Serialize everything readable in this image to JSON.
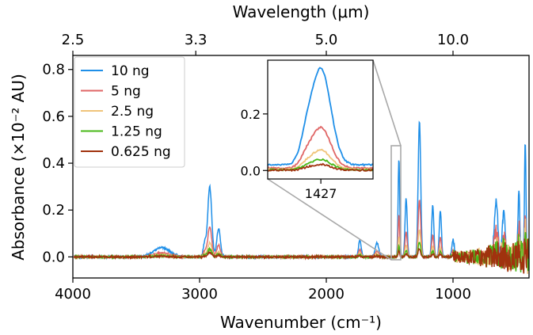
{
  "chart_data": {
    "type": "line",
    "xlabel": "Wavenumber (cm⁻¹)",
    "ylabel": "Absorbance (×10⁻² AU)",
    "top_xlabel": "Wavelength (μm)",
    "xlim": [
      4000,
      400
    ],
    "ylim": [
      -0.09,
      0.86
    ],
    "x_ticks": [
      4000,
      3000,
      2000,
      1000
    ],
    "x_tick_labels": [
      "4000",
      "3000",
      "2000",
      "1000"
    ],
    "y_ticks": [
      0.0,
      0.2,
      0.4,
      0.6,
      0.8
    ],
    "y_tick_labels": [
      "0.0",
      "0.2",
      "0.4",
      "0.6",
      "0.8"
    ],
    "top_ticks_wavenumber": [
      4000,
      3030,
      2000,
      1000
    ],
    "top_tick_labels": [
      "2.5",
      "3.3",
      "5.0",
      "10.0"
    ],
    "legend_position": "top-left",
    "series": [
      {
        "name": "10 ng",
        "color": "#1f8fe8",
        "scale": 1.0
      },
      {
        "name": "5 ng",
        "color": "#e06666",
        "scale": 0.42
      },
      {
        "name": "2.5 ng",
        "color": "#f0c47a",
        "scale": 0.2
      },
      {
        "name": "1.25 ng",
        "color": "#48b818",
        "scale": 0.11
      },
      {
        "name": "0.625 ng",
        "color": "#a0320e",
        "scale": 0.06
      }
    ],
    "peaks": [
      {
        "center": 3300,
        "width": 90,
        "height": 0.04
      },
      {
        "center": 2920,
        "width": 22,
        "height": 0.3
      },
      {
        "center": 2850,
        "width": 20,
        "height": 0.12
      },
      {
        "center": 2960,
        "width": 15,
        "height": 0.06
      },
      {
        "center": 1735,
        "width": 15,
        "height": 0.07
      },
      {
        "center": 1600,
        "width": 20,
        "height": 0.06
      },
      {
        "center": 1427,
        "width": 9,
        "height": 0.42
      },
      {
        "center": 1370,
        "width": 12,
        "height": 0.25
      },
      {
        "center": 1265,
        "width": 14,
        "height": 0.58
      },
      {
        "center": 1160,
        "width": 12,
        "height": 0.22
      },
      {
        "center": 1100,
        "width": 12,
        "height": 0.2
      },
      {
        "center": 1000,
        "width": 14,
        "height": 0.07
      },
      {
        "center": 660,
        "width": 20,
        "height": 0.24
      },
      {
        "center": 600,
        "width": 15,
        "height": 0.2
      },
      {
        "center": 480,
        "width": 10,
        "height": 0.28
      },
      {
        "center": 430,
        "width": 8,
        "height": 0.5
      }
    ],
    "inset": {
      "x_range": [
        1480,
        1375
      ],
      "ylim": [
        -0.03,
        0.39
      ],
      "x_tick": 1427,
      "x_tick_label": "1427",
      "y_ticks": [
        0.0,
        0.2
      ],
      "y_tick_labels": [
        "0.0",
        "0.2"
      ],
      "peak_height": 0.34
    }
  }
}
